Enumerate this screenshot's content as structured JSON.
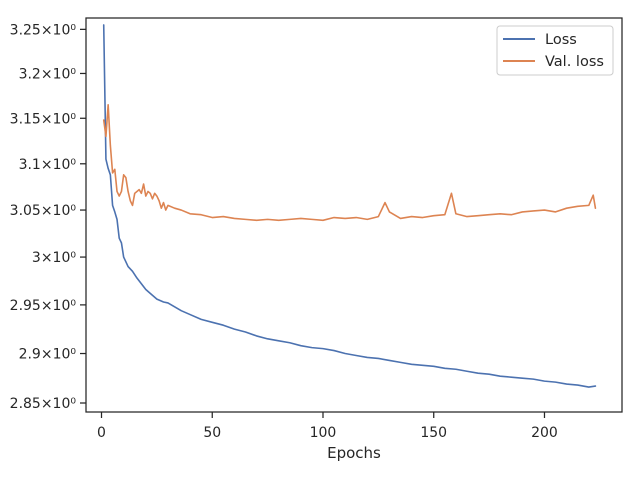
{
  "chart_data": {
    "type": "line",
    "title": "",
    "xlabel": "Epochs",
    "ylabel": "",
    "xlim": [
      -7,
      235
    ],
    "ylim": [
      2.841,
      3.263
    ],
    "yscale": "log",
    "x_ticks": [
      0,
      50,
      100,
      150,
      200
    ],
    "y_ticks": [
      2.85,
      2.9,
      2.95,
      3.0,
      3.05,
      3.1,
      3.15,
      3.2,
      3.25
    ],
    "y_tick_labels": [
      "2.85×10⁰",
      "2.9×10⁰",
      "2.95×10⁰",
      "3×10⁰",
      "3.05×10⁰",
      "3.1×10⁰",
      "3.15×10⁰",
      "3.2×10⁰",
      "3.25×10⁰"
    ],
    "grid": false,
    "legend_position": "top-right",
    "series": [
      {
        "name": "Loss",
        "color": "#4c72b0",
        "x": [
          1,
          2,
          3,
          4,
          5,
          6,
          7,
          8,
          9,
          10,
          12,
          14,
          16,
          18,
          20,
          22,
          25,
          28,
          30,
          33,
          36,
          40,
          45,
          50,
          55,
          60,
          65,
          70,
          75,
          80,
          85,
          90,
          95,
          100,
          105,
          110,
          115,
          120,
          125,
          130,
          135,
          140,
          145,
          150,
          155,
          160,
          165,
          170,
          175,
          180,
          185,
          190,
          195,
          200,
          205,
          210,
          215,
          220,
          223
        ],
        "values": [
          3.255,
          3.105,
          3.095,
          3.088,
          3.055,
          3.048,
          3.04,
          3.02,
          3.015,
          3.0,
          2.99,
          2.985,
          2.978,
          2.972,
          2.966,
          2.962,
          2.956,
          2.953,
          2.952,
          2.948,
          2.944,
          2.94,
          2.935,
          2.932,
          2.929,
          2.925,
          2.922,
          2.918,
          2.915,
          2.913,
          2.911,
          2.908,
          2.906,
          2.905,
          2.903,
          2.9,
          2.898,
          2.896,
          2.895,
          2.893,
          2.891,
          2.889,
          2.888,
          2.887,
          2.885,
          2.884,
          2.882,
          2.88,
          2.879,
          2.877,
          2.876,
          2.875,
          2.874,
          2.872,
          2.871,
          2.869,
          2.868,
          2.866,
          2.867
        ]
      },
      {
        "name": "Val. loss",
        "color": "#dd8452",
        "x": [
          1,
          2,
          3,
          4,
          5,
          6,
          7,
          8,
          9,
          10,
          11,
          12,
          13,
          14,
          15,
          16,
          17,
          18,
          19,
          20,
          21,
          22,
          23,
          24,
          25,
          26,
          27,
          28,
          29,
          30,
          33,
          36,
          40,
          45,
          50,
          55,
          60,
          65,
          70,
          75,
          80,
          85,
          90,
          95,
          100,
          105,
          110,
          115,
          120,
          125,
          128,
          130,
          135,
          140,
          145,
          150,
          155,
          158,
          160,
          165,
          170,
          175,
          180,
          185,
          190,
          195,
          200,
          205,
          210,
          215,
          220,
          222,
          223
        ],
        "values": [
          3.148,
          3.13,
          3.165,
          3.12,
          3.09,
          3.094,
          3.07,
          3.065,
          3.07,
          3.088,
          3.085,
          3.07,
          3.06,
          3.055,
          3.068,
          3.07,
          3.072,
          3.068,
          3.078,
          3.065,
          3.07,
          3.068,
          3.062,
          3.068,
          3.065,
          3.06,
          3.052,
          3.058,
          3.05,
          3.055,
          3.052,
          3.05,
          3.046,
          3.045,
          3.042,
          3.043,
          3.041,
          3.04,
          3.039,
          3.04,
          3.039,
          3.04,
          3.041,
          3.04,
          3.039,
          3.042,
          3.041,
          3.042,
          3.04,
          3.043,
          3.058,
          3.048,
          3.041,
          3.043,
          3.042,
          3.044,
          3.045,
          3.068,
          3.046,
          3.043,
          3.044,
          3.045,
          3.046,
          3.045,
          3.048,
          3.049,
          3.05,
          3.048,
          3.052,
          3.054,
          3.055,
          3.066,
          3.052
        ]
      }
    ]
  }
}
